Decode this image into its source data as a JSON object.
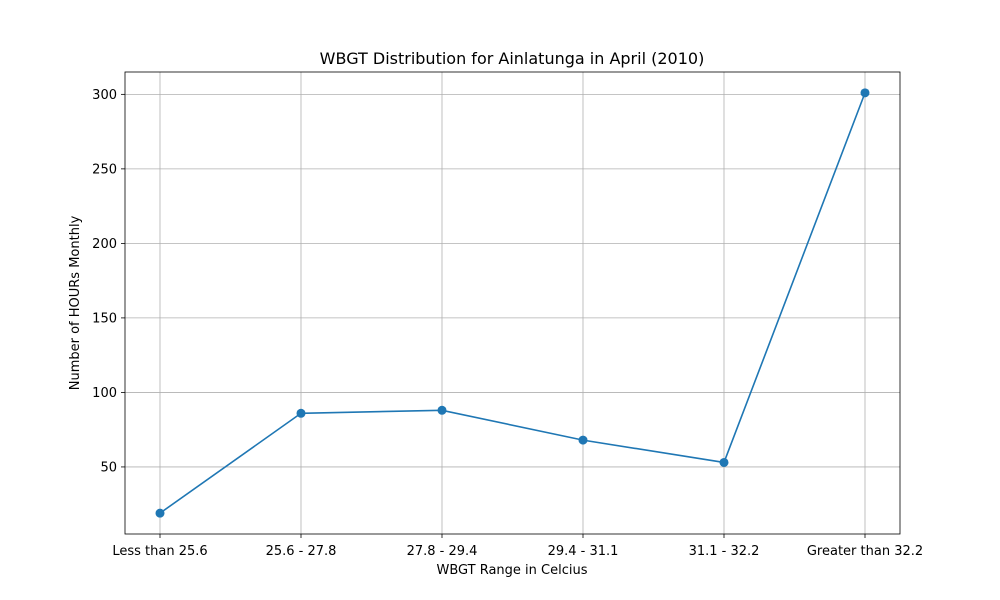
{
  "chart_data": {
    "type": "line",
    "title": "WBGT Distribution for Ainlatunga in April (2010)",
    "xlabel": "WBGT Range in Celcius",
    "ylabel": "Number of HOURs Monthly",
    "categories": [
      "Less than 25.6",
      "25.6 - 27.8",
      "27.8 - 29.4",
      "29.4 - 31.1",
      "31.1 - 32.2",
      "Greater than 32.2"
    ],
    "series": [
      {
        "values": [
          19,
          86,
          88,
          68,
          53,
          301
        ]
      }
    ],
    "ylim": [
      5,
      315
    ],
    "yticks": [
      50,
      100,
      150,
      200,
      250,
      300
    ],
    "grid": true,
    "color": "#1f77b4"
  }
}
